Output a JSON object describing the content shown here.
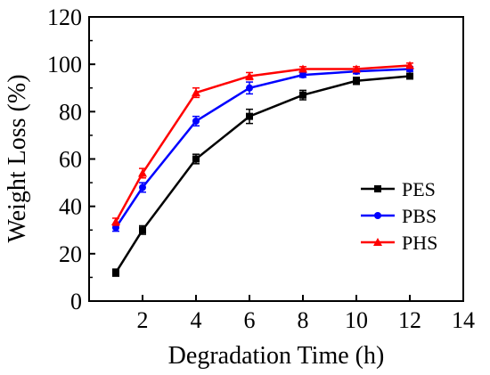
{
  "chart_data": {
    "type": "line",
    "title": "",
    "xlabel": "Degradation Time (h)",
    "ylabel": "Weight  Loss (%)",
    "xlim": [
      0,
      14
    ],
    "ylim": [
      0,
      120
    ],
    "xticks": [
      2,
      4,
      6,
      8,
      10,
      12,
      14
    ],
    "yticks": [
      0,
      20,
      40,
      60,
      80,
      100,
      120
    ],
    "grid": false,
    "legend_position": "center-right",
    "x": [
      1,
      2,
      4,
      6,
      8,
      10,
      12
    ],
    "series": [
      {
        "name": "PES",
        "color": "#000000",
        "marker": "square",
        "values": [
          12,
          30,
          60,
          78,
          87,
          93,
          95
        ],
        "errors": [
          1.5,
          1.8,
          2,
          3,
          2,
          1.5,
          1
        ]
      },
      {
        "name": "PBS",
        "color": "#0000ff",
        "marker": "circle",
        "values": [
          31,
          48,
          76,
          90,
          95.5,
          97,
          98
        ],
        "errors": [
          1.5,
          2,
          2,
          2.5,
          1,
          1,
          1
        ]
      },
      {
        "name": "PHS",
        "color": "#ff0000",
        "marker": "triangle",
        "values": [
          33.5,
          54,
          88,
          95,
          98,
          98,
          99.5
        ],
        "errors": [
          1.5,
          2,
          2,
          1.5,
          1,
          1,
          1
        ]
      }
    ]
  }
}
